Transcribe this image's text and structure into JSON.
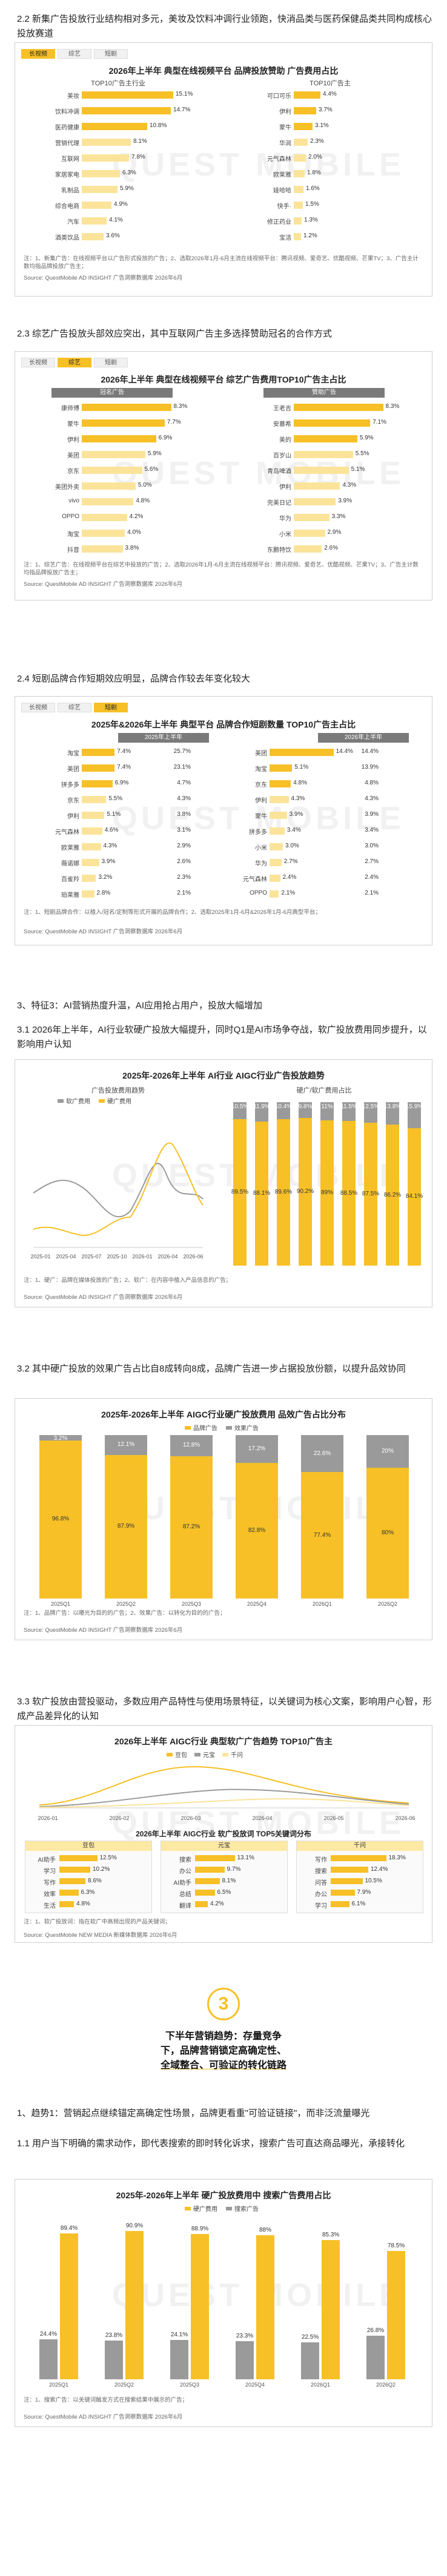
{
  "sections": {
    "s22": "2.2 新集广告投放行业结构相对多元，美妆及饮料冲调行业领跑，快消品类与医药保健品类共同构成核心投放赛道",
    "s23": "2.3 综艺广告投放头部效应突出，其中互联网广告主多选择赞助冠名的合作方式",
    "s24": "2.4 短剧品牌合作短期效应明显，品牌合作较去年变化较大",
    "s3": "3、特征3：AI营销热度升温，AI应用抢占用户，投放大幅增加",
    "s31": "3.1 2026年上半年，AI行业软硬广投放大幅提升，同时Q1是AI市场争夺战，软广投放费用同步提升，以影响用户认知",
    "s32": "3.2 其中硬广投放的效果广告占比自8成转向8成，品牌广告进一步占据投放份额，以提升品效协同",
    "s33": "3.3 软广投放由营投驱动，多数应用产品特性与使用场景特征，以关键词为核心文案，影响用户心智，形成产品差异化的认知",
    "t1": "1、趋势1：营销起点继续锚定高确定性场景，品牌更看重\"可验证链接\"，而非泛流量曝光",
    "t1a": "1.1 用户当下明确的需求动作，即代表搜索的即时转化诉求，搜索广告可直达商品曝光，承接转化"
  },
  "tabs": [
    "长视频",
    "综艺",
    "短剧"
  ],
  "card1": {
    "title": "2026年上半年 典型在线视频平台 品牌投放赞助 广告费用占比",
    "left_sub": "TOP10广告主行业",
    "right_sub": "TOP10广告主",
    "left": [
      {
        "label": "美妆",
        "value": 15.1,
        "text": "15.1%"
      },
      {
        "label": "饮料冲调",
        "value": 14.7,
        "text": "14.7%"
      },
      {
        "label": "医药健康",
        "value": 10.8,
        "text": "10.8%"
      },
      {
        "label": "营销代理",
        "value": 8.1,
        "text": "8.1%"
      },
      {
        "label": "互联网",
        "value": 7.8,
        "text": "7.8%"
      },
      {
        "label": "家居家电",
        "value": 6.3,
        "text": "6.3%"
      },
      {
        "label": "乳制品",
        "value": 5.9,
        "text": "5.9%"
      },
      {
        "label": "综合电商",
        "value": 4.9,
        "text": "4.9%"
      },
      {
        "label": "汽车",
        "value": 4.1,
        "text": "4.1%"
      },
      {
        "label": "酒类饮品",
        "value": 3.6,
        "text": "3.6%"
      }
    ],
    "right": [
      {
        "label": "可口可乐",
        "value": 4.4,
        "text": "4.4%"
      },
      {
        "label": "伊利",
        "value": 3.7,
        "text": "3.7%"
      },
      {
        "label": "蒙牛",
        "value": 3.1,
        "text": "3.1%"
      },
      {
        "label": "华润",
        "value": 2.3,
        "text": "2.3%"
      },
      {
        "label": "元气森林",
        "value": 2.0,
        "text": "2.0%"
      },
      {
        "label": "欧莱雅",
        "value": 1.8,
        "text": "1.8%"
      },
      {
        "label": "娃哈哈",
        "value": 1.6,
        "text": "1.6%"
      },
      {
        "label": "快手·",
        "value": 1.5,
        "text": "1.5%"
      },
      {
        "label": "修正药业",
        "value": 1.3,
        "text": "1.3%"
      },
      {
        "label": "宝洁",
        "value": 1.2,
        "text": "1.2%"
      }
    ],
    "note": "注：1、新集广告：在线视频平台以广告形式投放的广告；2、选取2026年1月-6月主流在线视频平台：腾讯视频、爱奇艺、优酷视频、芒果TV；3、广告主计数均指品牌投放广告主；",
    "source": "Source: QuestMobile AD INSIGHT 广告洞察数据库 2026年6月"
  },
  "card2": {
    "title": "2026年上半年 典型在线视频平台 综艺广告费用TOP10广告主占比",
    "left_hdr": "冠名广告",
    "right_hdr": "赞助广告",
    "left": [
      {
        "label": "康师傅",
        "value": 8.3,
        "text": "8.3%"
      },
      {
        "label": "蒙牛",
        "value": 7.7,
        "text": "7.7%"
      },
      {
        "label": "伊利",
        "value": 6.9,
        "text": "6.9%"
      },
      {
        "label": "美团",
        "value": 5.9,
        "text": "5.9%"
      },
      {
        "label": "京东",
        "value": 5.6,
        "text": "5.6%"
      },
      {
        "label": "美团外卖",
        "value": 5.0,
        "text": "5.0%"
      },
      {
        "label": "vivo",
        "value": 4.8,
        "text": "4.8%"
      },
      {
        "label": "OPPO",
        "value": 4.2,
        "text": "4.2%"
      },
      {
        "label": "淘宝",
        "value": 4.0,
        "text": "4.0%"
      },
      {
        "label": "抖音",
        "value": 3.8,
        "text": "3.8%"
      }
    ],
    "right": [
      {
        "label": "王老吉",
        "value": 8.3,
        "text": "8.3%"
      },
      {
        "label": "安慕希",
        "value": 7.1,
        "text": "7.1%"
      },
      {
        "label": "美的",
        "value": 5.9,
        "text": "5.9%"
      },
      {
        "label": "百岁山",
        "value": 5.5,
        "text": "5.5%"
      },
      {
        "label": "青岛啤酒",
        "value": 5.1,
        "text": "5.1%"
      },
      {
        "label": "伊利",
        "value": 4.3,
        "text": "4.3%"
      },
      {
        "label": "完美日记",
        "value": 3.9,
        "text": "3.9%"
      },
      {
        "label": "华为",
        "value": 3.3,
        "text": "3.3%"
      },
      {
        "label": "小米",
        "value": 2.9,
        "text": "2.9%"
      },
      {
        "label": "东鹏特饮",
        "value": 2.6,
        "text": "2.6%"
      }
    ],
    "note": "注：1、综艺广告：在线视频平台在综艺中投放的广告；2、选取2026年1月-6月主流在线视频平台：腾讯视频、爱奇艺、优酷视频、芒果TV；3、广告主计数均指品牌投放广告主；",
    "source": "Source: QuestMobile AD INSIGHT 广告洞察数据库 2026年6月"
  },
  "card3": {
    "title": "2025年&2026年上半年 典型平台 品牌合作短剧数量 TOP10广告主占比",
    "left_hdr": "2025年上半年",
    "right_hdr": "2026年上半年",
    "left": [
      {
        "label": "淘宝",
        "value": 7.4,
        "text": "7.4%",
        "change": "25.7%"
      },
      {
        "label": "美团",
        "value": 7.4,
        "text": "7.4%",
        "change": "23.1%"
      },
      {
        "label": "拼多多",
        "value": 6.9,
        "text": "6.9%",
        "change": "4.7%"
      },
      {
        "label": "京东",
        "value": 5.5,
        "text": "5.5%",
        "change": "4.3%"
      },
      {
        "label": "伊利",
        "value": 5.1,
        "text": "5.1%",
        "change": "3.8%"
      },
      {
        "label": "元气森林",
        "value": 4.6,
        "text": "4.6%",
        "change": "3.1%"
      },
      {
        "label": "欧莱雅",
        "value": 4.3,
        "text": "4.3%",
        "change": "2.9%"
      },
      {
        "label": "薇诺娜",
        "value": 3.9,
        "text": "3.9%",
        "change": "2.6%"
      },
      {
        "label": "百雀羚",
        "value": 3.2,
        "text": "3.2%",
        "change": "2.3%"
      },
      {
        "label": "珀莱雅",
        "value": 2.8,
        "text": "2.8%",
        "change": "2.1%"
      }
    ],
    "right": [
      {
        "label": "美团",
        "value": 14.4,
        "text": "14.4%",
        "change": "14.4%"
      },
      {
        "label": "淘宝",
        "value": 5.1,
        "text": "5.1%",
        "change": "13.9%"
      },
      {
        "label": "京东",
        "value": 4.8,
        "text": "4.8%",
        "change": "4.8%"
      },
      {
        "label": "伊利",
        "value": 4.3,
        "text": "4.3%",
        "change": "4.3%"
      },
      {
        "label": "蒙牛",
        "value": 3.9,
        "text": "3.9%",
        "change": "3.9%"
      },
      {
        "label": "拼多多",
        "value": 3.4,
        "text": "3.4%",
        "change": "3.4%"
      },
      {
        "label": "小米",
        "value": 3.0,
        "text": "3.0%",
        "change": "3.0%"
      },
      {
        "label": "华为",
        "value": 2.7,
        "text": "2.7%",
        "change": "2.7%"
      },
      {
        "label": "元气森林",
        "value": 2.4,
        "text": "2.4%",
        "change": "2.4%"
      },
      {
        "label": "OPPO",
        "value": 2.1,
        "text": "2.1%",
        "change": "2.1%"
      }
    ],
    "note": "注：1、短剧品牌合作：以植入/冠名/定制等形式开展的品牌合作；2、选取2025年1月-6月&2026年1月-6月典型平台；",
    "source": "Source: QuestMobile AD INSIGHT 广告洞察数据库 2026年6月"
  },
  "card4": {
    "title": "2025年-2026年上半年 AI行业 AIGC行业广告投放趋势",
    "left_sub": "广告投放费用趋势",
    "right_sub": "硬广/软广费用占比",
    "legend_a": "软广费用",
    "legend_b": "硬广费用",
    "months": [
      "2025-01",
      "2025-04",
      "2025-07",
      "2025-10",
      "2026-01",
      "2026-04",
      "2026-06"
    ],
    "bars": [
      {
        "hard": 89.5,
        "soft": 10.5
      },
      {
        "hard": 88.1,
        "soft": 11.9
      },
      {
        "hard": 89.6,
        "soft": 10.4
      },
      {
        "hard": 90.2,
        "soft": 9.8
      },
      {
        "hard": 89.0,
        "soft": 11.0
      },
      {
        "hard": 88.5,
        "soft": 11.5
      },
      {
        "hard": 87.5,
        "soft": 12.5
      },
      {
        "hard": 86.2,
        "soft": 13.8
      },
      {
        "hard": 84.1,
        "soft": 15.9
      }
    ],
    "note": "注：1、硬广：品牌在媒体投放的广告；2、软广：在内容中植入产品信息的广告；",
    "source": "Source: QuestMobile AD INSIGHT 广告洞察数据库 2026年6月"
  },
  "card5": {
    "title": "2025年-2026年上半年 AIGC行业硬广投放费用 品效广告占比分布",
    "legend_a": "品牌广告",
    "legend_b": "效果广告",
    "categories": [
      "2025Q1",
      "2025Q2",
      "2025Q3",
      "2025Q4",
      "2026Q1",
      "2026Q2"
    ],
    "bars": [
      {
        "a": 96.8,
        "b": 3.2
      },
      {
        "a": 87.9,
        "b": 12.1
      },
      {
        "a": 87.2,
        "b": 12.8
      },
      {
        "a": 82.8,
        "b": 17.2
      },
      {
        "a": 77.4,
        "b": 22.6
      },
      {
        "a": 80.0,
        "b": 20.0
      }
    ],
    "note": "注：1、品牌广告：以曝光为目的的广告；2、效果广告：以转化为目的的广告；",
    "source": "Source: QuestMobile AD INSIGHT 广告洞察数据库 2026年6月"
  },
  "card6": {
    "title1": "2026年上半年 AIGC行业 典型软广广告趋势 TOP10广告主",
    "title2": "2026年上半年 AIGC行业 软广投放词 TOP5关键词分布",
    "months": [
      "2026-01",
      "2026-02",
      "2026-03",
      "2026-04",
      "2026-05",
      "2026-06"
    ],
    "legend": [
      "豆包",
      "元宝",
      "千问"
    ],
    "boxes": [
      {
        "head": "豆包",
        "items": [
          {
            "k": "AI助手",
            "v": 12.5,
            "t": "12.5%"
          },
          {
            "k": "学习",
            "v": 10.2,
            "t": "10.2%"
          },
          {
            "k": "写作",
            "v": 8.6,
            "t": "8.6%"
          },
          {
            "k": "效率",
            "v": 6.3,
            "t": "6.3%"
          },
          {
            "k": "生活",
            "v": 4.8,
            "t": "4.8%"
          }
        ]
      },
      {
        "head": "元宝",
        "items": [
          {
            "k": "搜索",
            "v": 13.1,
            "t": "13.1%"
          },
          {
            "k": "办公",
            "v": 9.7,
            "t": "9.7%"
          },
          {
            "k": "AI助手",
            "v": 8.1,
            "t": "8.1%"
          },
          {
            "k": "总结",
            "v": 6.5,
            "t": "6.5%"
          },
          {
            "k": "翻译",
            "v": 4.2,
            "t": "4.2%"
          }
        ]
      },
      {
        "head": "千问",
        "items": [
          {
            "k": "写作",
            "v": 18.3,
            "t": "18.3%"
          },
          {
            "k": "搜索",
            "v": 12.4,
            "t": "12.4%"
          },
          {
            "k": "问答",
            "v": 10.5,
            "t": "10.5%"
          },
          {
            "k": "办公",
            "v": 7.9,
            "t": "7.9%"
          },
          {
            "k": "学习",
            "v": 6.1,
            "t": "6.1%"
          }
        ]
      }
    ],
    "note": "注：1、软广投放词：指在软广中高频出现的产品关键词；",
    "source": "Source: QuestMobile NEW MEDIA 新媒体数据库 2026年6月"
  },
  "banner": {
    "num": "3",
    "line1": "下半年营销趋势：存量竞争",
    "line2": "下，品牌营销锁定高确定性、",
    "line3": "全域整合、可验证的转化链路"
  },
  "card7": {
    "title": "2025年-2026年上半年 硬广投放费用中 搜索广告费用占比",
    "legend_a": "硬广费用",
    "legend_b": "搜索广告",
    "categories": [
      "2025Q1",
      "2025Q2",
      "2025Q3",
      "2025Q4",
      "2026Q1",
      "2026Q2"
    ],
    "bars": [
      {
        "a": 89.4,
        "b": 24.4
      },
      {
        "a": 90.9,
        "b": 23.8
      },
      {
        "a": 88.9,
        "b": 24.1
      },
      {
        "a": 88.0,
        "b": 23.3
      },
      {
        "a": 85.3,
        "b": 22.5
      },
      {
        "a": 78.5,
        "b": 26.8
      }
    ],
    "note": "注：1、搜索广告：以关键词触发方式在搜索结果中展示的广告；",
    "source": "Source: QuestMobile AD INSIGHT 广告洞察数据库 2026年6月"
  },
  "watermark": "QUEST MOBILE",
  "colors": {
    "accent": "#f6c026",
    "light": "#fbe49a",
    "gray": "#9a9a9a",
    "dark": "#7a7a7a"
  }
}
